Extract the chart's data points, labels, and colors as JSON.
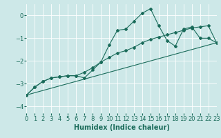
{
  "xlabel": "Humidex (Indice chaleur)",
  "x_values": [
    0,
    1,
    2,
    3,
    4,
    5,
    6,
    7,
    8,
    9,
    10,
    11,
    12,
    13,
    14,
    15,
    16,
    17,
    18,
    19,
    20,
    21,
    22,
    23
  ],
  "line1_y": [
    -3.5,
    -3.15,
    -2.9,
    -2.75,
    -2.7,
    -2.65,
    -2.65,
    -2.75,
    -2.4,
    -2.05,
    -1.3,
    -0.65,
    -0.6,
    -0.25,
    0.1,
    0.3,
    -0.45,
    -1.1,
    -1.35,
    -0.6,
    -0.5,
    -1.0,
    -1.0,
    -1.2
  ],
  "line2_y": [
    -3.5,
    -3.15,
    -2.9,
    -2.75,
    -2.7,
    -2.65,
    -2.65,
    -2.5,
    -2.3,
    -2.05,
    -1.85,
    -1.65,
    -1.55,
    -1.4,
    -1.2,
    -1.05,
    -0.95,
    -0.85,
    -0.75,
    -0.65,
    -0.55,
    -0.5,
    -0.45,
    -1.2
  ],
  "ylim": [
    -4.3,
    0.5
  ],
  "yticks": [
    -4,
    -3,
    -2,
    -1,
    0
  ],
  "xlim": [
    0,
    23
  ],
  "bg_color": "#cde8e8",
  "line_color": "#1a6b5a",
  "grid_color": "#ffffff",
  "tick_fontsize": 6,
  "xlabel_fontsize": 7
}
